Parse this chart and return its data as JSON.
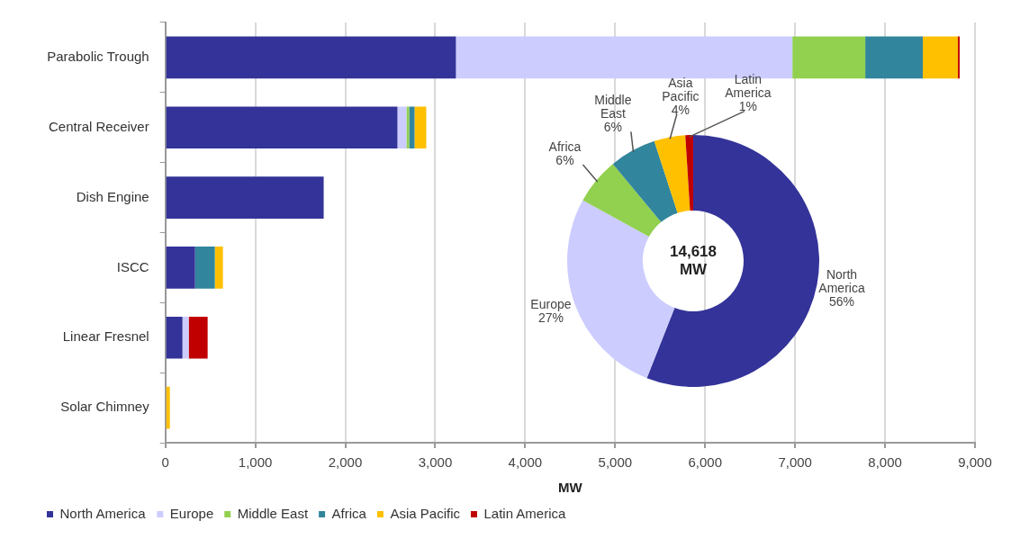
{
  "chart_data": [
    {
      "type": "bar",
      "orientation": "horizontal",
      "stacked": true,
      "xlabel": "MW",
      "categories": [
        "Parabolic Trough",
        "Central Receiver",
        "Dish Engine",
        "ISCC",
        "Linear Fresnel",
        "Solar Chimney"
      ],
      "series": [
        {
          "name": "North America",
          "color": "#333399",
          "values": [
            3230,
            2580,
            1760,
            330,
            190,
            null
          ]
        },
        {
          "name": "Europe",
          "color": "#ccccff",
          "values": [
            3740,
            100,
            null,
            null,
            70,
            null
          ]
        },
        {
          "name": "Middle East",
          "color": "#92d050",
          "values": [
            810,
            30,
            null,
            null,
            null,
            null
          ]
        },
        {
          "name": "Africa",
          "color": "#31859c",
          "values": [
            640,
            60,
            null,
            220,
            null,
            null
          ]
        },
        {
          "name": "Asia Pacific",
          "color": "#ffc000",
          "values": [
            390,
            130,
            null,
            90,
            null,
            50
          ]
        },
        {
          "name": "Latin America",
          "color": "#c00000",
          "values": [
            20,
            null,
            null,
            null,
            210,
            null
          ]
        }
      ],
      "xlim": [
        0,
        9000
      ],
      "xticks": [
        {
          "value": 0,
          "label": "0"
        },
        {
          "value": 1000,
          "label": "1,000"
        },
        {
          "value": 2000,
          "label": "2,000"
        },
        {
          "value": 3000,
          "label": "3,000"
        },
        {
          "value": 4000,
          "label": "4,000"
        },
        {
          "value": 5000,
          "label": "5,000"
        },
        {
          "value": 6000,
          "label": "6,000"
        },
        {
          "value": 7000,
          "label": "7,000"
        },
        {
          "value": 8000,
          "label": "8,000"
        },
        {
          "value": 9000,
          "label": "9,000"
        }
      ],
      "grid": "x",
      "legend": "bottom"
    },
    {
      "type": "donut",
      "categories": [
        "North America",
        "Europe",
        "Africa",
        "Middle East",
        "Asia Pacific",
        "Latin America"
      ],
      "values": [
        56,
        27,
        6,
        6,
        4,
        1
      ],
      "colors": [
        "#333399",
        "#ccccff",
        "#92d050",
        "#31859c",
        "#ffc000",
        "#c00000"
      ],
      "value_labels": [
        "56%",
        "27%",
        "6%",
        "6%",
        "4%",
        "1%"
      ],
      "annotations": [
        "14,618 MW"
      ],
      "legend": false
    }
  ]
}
